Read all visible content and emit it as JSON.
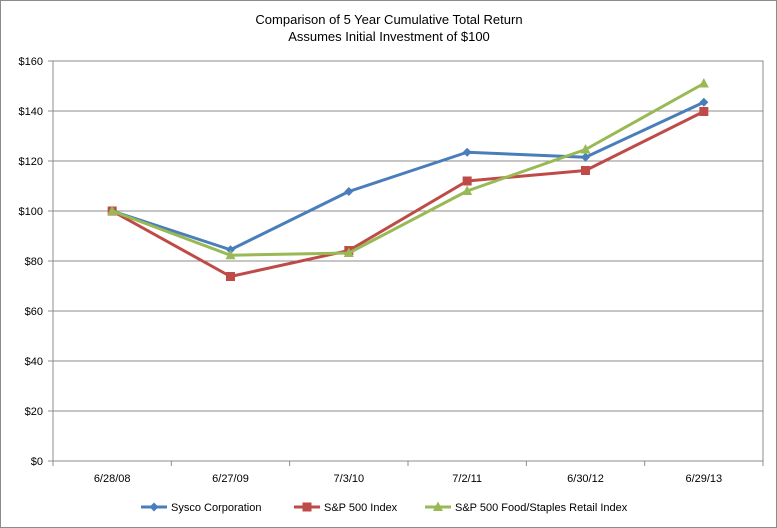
{
  "chart_data": {
    "type": "line",
    "title": "Comparison of 5 Year Cumulative Total Return",
    "subtitle": "Assumes Initial Investment of $100",
    "categories": [
      "6/28/08",
      "6/27/09",
      "7/3/10",
      "7/2/11",
      "6/30/12",
      "6/29/13"
    ],
    "y_tick_labels": [
      "$0",
      "$20",
      "$40",
      "$60",
      "$80",
      "$100",
      "$120",
      "$140",
      "$160"
    ],
    "ylim": [
      0,
      160
    ],
    "y_step": 20,
    "grid": true,
    "legend_position": "bottom",
    "series": [
      {
        "name": "Sysco Corporation",
        "color": "#4a7ebb",
        "marker": "diamond",
        "values": [
          100,
          84.5,
          107.8,
          123.5,
          121.5,
          143.5
        ]
      },
      {
        "name": "S&P 500 Index",
        "color": "#be4b48",
        "marker": "square",
        "values": [
          100,
          73.8,
          84.2,
          112,
          116.2,
          139.8
        ]
      },
      {
        "name": "S&P 500 Food/Staples Retail Index",
        "color": "#98b954",
        "marker": "triangle",
        "values": [
          100,
          82.3,
          83.2,
          108,
          124.6,
          151
        ]
      }
    ]
  }
}
